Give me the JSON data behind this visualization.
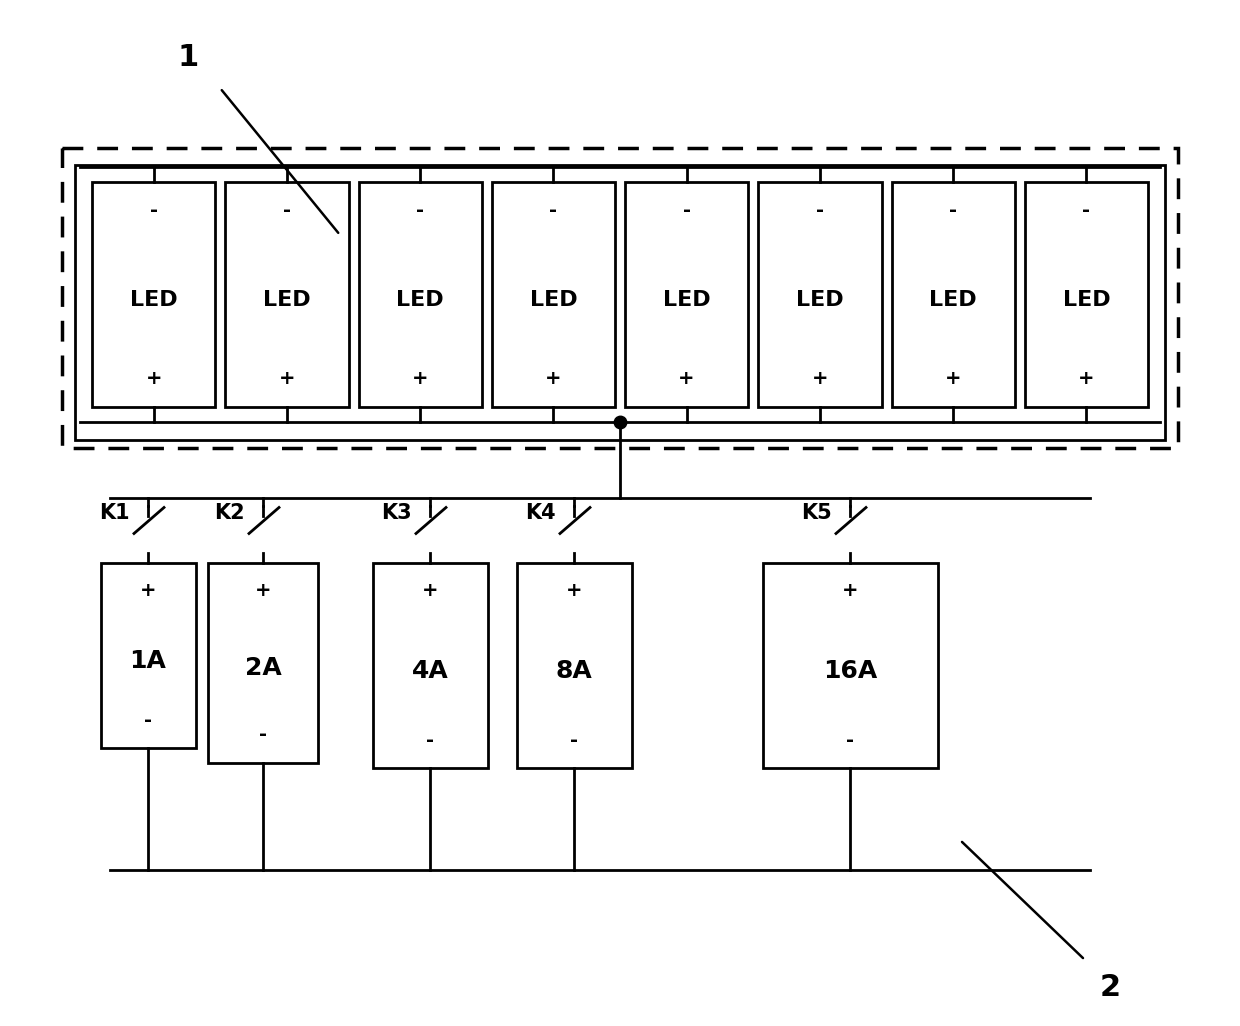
{
  "bg_color": "#ffffff",
  "line_color": "#000000",
  "lw_main": 2.0,
  "lw_dashed": 2.5,
  "led_count": 8,
  "led_label": "LED",
  "annotation_1": "1",
  "annotation_2": "2",
  "current_sources": [
    {
      "label": "1A",
      "switch": "K1"
    },
    {
      "label": "2A",
      "switch": "K2"
    },
    {
      "label": "4A",
      "switch": "K3"
    },
    {
      "label": "8A",
      "switch": "K4"
    },
    {
      "label": "16A",
      "switch": "K5"
    }
  ],
  "led_fontsize": 16,
  "pm_fontsize": 14,
  "src_fontsize": 18,
  "src_pm_fontsize": 14,
  "label_fontsize": 22,
  "switch_fontsize": 15
}
